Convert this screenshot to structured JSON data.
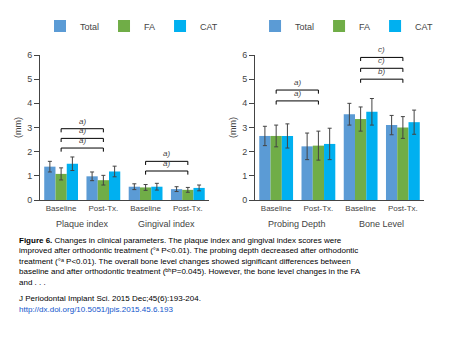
{
  "chart_data": [
    {
      "type": "bar",
      "ylabel": "(mm)",
      "categories": [
        "Baseline",
        "Post-Tx.",
        "Baseline",
        "Post-Tx."
      ],
      "group_labels": [
        "Plaque index",
        "Gingival index"
      ],
      "series": [
        {
          "name": "Total",
          "color": "#5b9bd5",
          "values": [
            1.38,
            0.98,
            0.55,
            0.45
          ],
          "errors": [
            0.22,
            0.18,
            0.12,
            0.1
          ]
        },
        {
          "name": "FA",
          "color": "#70ad47",
          "values": [
            1.08,
            0.82,
            0.52,
            0.42
          ],
          "errors": [
            0.25,
            0.2,
            0.12,
            0.1
          ]
        },
        {
          "name": "CAT",
          "color": "#00b0f0",
          "values": [
            1.5,
            1.18,
            0.55,
            0.5
          ],
          "errors": [
            0.28,
            0.22,
            0.14,
            0.12
          ]
        }
      ],
      "brackets": [
        {
          "from": 0,
          "to": 1,
          "y": 2.15,
          "label": "a)"
        },
        {
          "from": 0,
          "to": 1,
          "y": 2.55,
          "label": "a)"
        },
        {
          "from": 0,
          "to": 1,
          "y": 2.95,
          "label": "a)"
        },
        {
          "from": 2,
          "to": 3,
          "y": 1.2,
          "label": "a)"
        },
        {
          "from": 2,
          "to": 3,
          "y": 1.6,
          "label": "a)"
        }
      ],
      "ylim": [
        0,
        6
      ],
      "yticks": [
        0,
        1,
        2,
        3,
        4,
        5,
        6
      ],
      "grid": false,
      "legend": "top"
    },
    {
      "type": "bar",
      "ylabel": "(mm)",
      "categories": [
        "Baseline",
        "Post-Tx.",
        "Baseline",
        "Post-Tx."
      ],
      "group_labels": [
        "Probing Depth",
        "Bone Level"
      ],
      "series": [
        {
          "name": "Total",
          "color": "#5b9bd5",
          "values": [
            2.65,
            2.22,
            3.55,
            3.1
          ],
          "errors": [
            0.4,
            0.55,
            0.45,
            0.4
          ]
        },
        {
          "name": "FA",
          "color": "#70ad47",
          "values": [
            2.65,
            2.25,
            3.35,
            3.0
          ],
          "errors": [
            0.45,
            0.6,
            0.5,
            0.45
          ]
        },
        {
          "name": "CAT",
          "color": "#00b0f0",
          "values": [
            2.65,
            2.32,
            3.65,
            3.22
          ],
          "errors": [
            0.5,
            0.65,
            0.55,
            0.5
          ]
        }
      ],
      "brackets": [
        {
          "from": 0,
          "to": 1,
          "y": 4.1,
          "label": "a)"
        },
        {
          "from": 0,
          "to": 1,
          "y": 4.55,
          "label": "a)"
        },
        {
          "from": 2,
          "to": 3,
          "y": 5.0,
          "label": "b)"
        },
        {
          "from": 2,
          "to": 3,
          "y": 5.45,
          "label": "c)"
        },
        {
          "from": 2,
          "to": 3,
          "y": 5.9,
          "label": "c)"
        }
      ],
      "ylim": [
        0,
        6
      ],
      "yticks": [
        0,
        1,
        2,
        3,
        4,
        5,
        6
      ],
      "grid": false,
      "legend": "top"
    }
  ],
  "caption_bold": "Figure 6.",
  "caption": " Changes in clinical parameters. The plaque index and gingival index scores were improved after orthodontic treatment (°ᵃ P<0.01). The probing depth decreased after orthodontic treatment (°ᵃ P<0.01). The overall bone level changes showed significant differences between baseline and after orthodontic treatment (ᵇʰP=0.045). However, the bone level changes in the FA and . . .",
  "source": [
    {
      "text": "J Periodontal Implant Sci. 2015 Dec;45(6):193-204."
    },
    {
      "text": "http://dx.doi.org/10.5051/jpis.2015.45.6.193",
      "color": "#1155cc"
    }
  ]
}
